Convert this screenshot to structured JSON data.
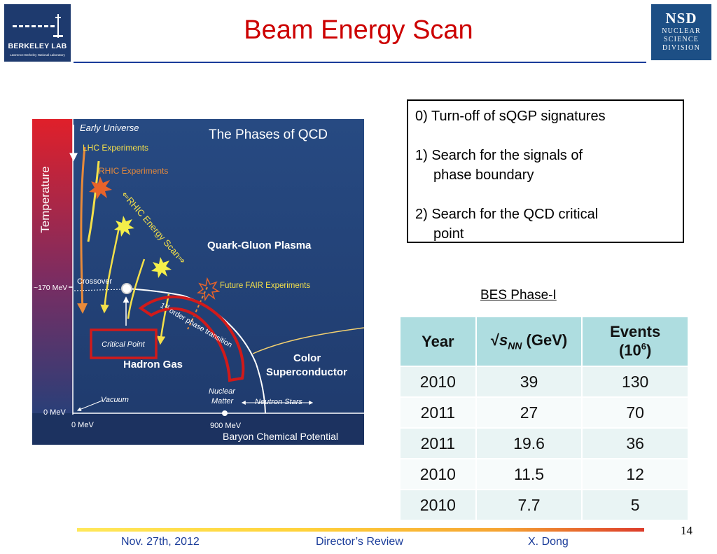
{
  "header": {
    "title": "Beam Energy Scan",
    "left_logo": {
      "name": "BERKELEY LAB",
      "sub": "Lawrence Berkeley National Laboratory"
    },
    "right_logo": {
      "big": "NSD",
      "line1": "NUCLEAR",
      "line2": "SCIENCE",
      "line3": "DIVISION"
    }
  },
  "figure": {
    "title": "The Phases of QCD",
    "y_axis": "Temperature",
    "x_axis": "Baryon Chemical Potential",
    "labels": {
      "early_universe": "Early Universe",
      "lhc": "LHC Experiments",
      "rhic": "RHIC Experiments",
      "energy_scan": "⇐RHIC Energy Scan⇒",
      "qgp": "Quark-Gluon Plasma",
      "fair": "Future FAIR Experiments",
      "crossover": "Crossover",
      "temp_mark": "~170 MeV",
      "first_order_sup": "st",
      "first_order_1": "1",
      "first_order_2": "order phase transition",
      "critical_point": "Critical Point",
      "hadron_gas": "Hadron Gas",
      "color_sc_1": "Color",
      "color_sc_2": "Superconductor",
      "nuclear_1": "Nuclear",
      "nuclear_2": "Matter",
      "neutron_stars": "Neutron Stars",
      "vacuum": "Vacuum",
      "zero_mev_y": "0 MeV",
      "zero_mev_x": "0 MeV",
      "nine_hundred": "900 MeV"
    }
  },
  "textbox": {
    "line1": "0) Turn-off of sQGP signatures",
    "line2a": "1) Search for the signals of",
    "line2b": "phase boundary",
    "line3a": "2) Search for the QCD critical",
    "line3b": "point"
  },
  "bes": {
    "title": "BES Phase-I",
    "header_year": "Year",
    "header_energy_sqrt": "√",
    "header_energy_s": "s",
    "header_energy_sub": "NN",
    "header_energy_unit": " (GeV)",
    "header_events_1": "Events",
    "header_events_2": "(10",
    "header_events_sup": "6",
    "header_events_3": ")",
    "rows": [
      {
        "year": "2010",
        "energy": "39",
        "events": "130"
      },
      {
        "year": "2011",
        "energy": "27",
        "events": "70"
      },
      {
        "year": "2011",
        "energy": "19.6",
        "events": "36"
      },
      {
        "year": "2010",
        "energy": "11.5",
        "events": "12"
      },
      {
        "year": "2010",
        "energy": "7.7",
        "events": "5"
      }
    ]
  },
  "footer": {
    "date": "Nov. 27th, 2012",
    "event": "Director’s Review",
    "author": "X. Dong",
    "page": "14"
  },
  "colors": {
    "title": "#cc0000",
    "rule": "#1a3c9a",
    "figure_bg": "#223f73",
    "table_header": "#aedde0"
  }
}
